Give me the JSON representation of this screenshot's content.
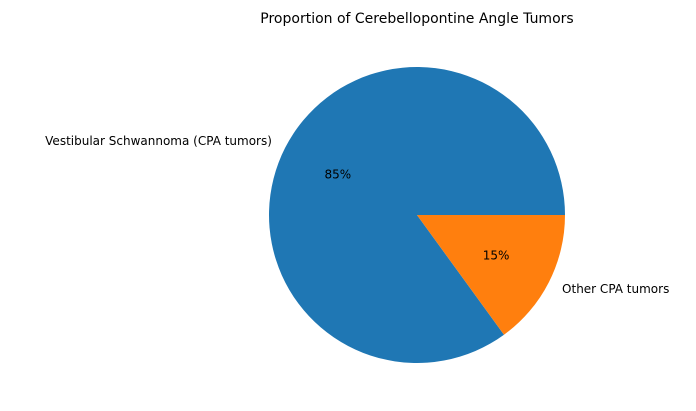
{
  "chart_data": {
    "type": "pie",
    "title": "Proportion of Cerebellopontine Angle Tumors",
    "start_angle_deg": 0,
    "direction": "counterclockwise",
    "slices": [
      {
        "label": "Vestibular Schwannoma (CPA tumors)",
        "value": 85,
        "pct_label": "85%",
        "color": "#1f77b4"
      },
      {
        "label": "Other CPA tumors",
        "value": 15,
        "pct_label": "15%",
        "color": "#ff7f0e"
      }
    ]
  }
}
